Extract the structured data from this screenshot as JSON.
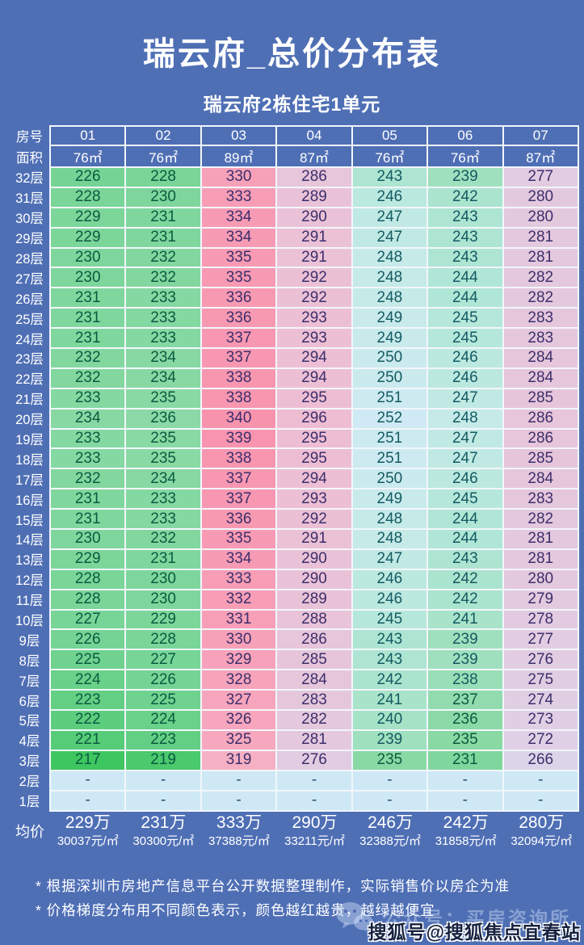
{
  "title": "瑞云府_总价分布表",
  "subtitle": "瑞云府2栋住宅1单元",
  "labels": {
    "corner_label": "房号",
    "area_label": "面积",
    "avg_label": "均价",
    "empty_cell": "-"
  },
  "colors": {
    "page_bg": "#4f6fb5",
    "grid_line": "#f2f6fb",
    "dash_row_bg": "#cee9f5",
    "dash_text": "#2b4a70",
    "text_green": "#0b5b40",
    "text_teal": "#155a62",
    "text_indigo": "#3c2f6b",
    "header_text": "#ffffff",
    "sohu_text": "#16213f"
  },
  "heatmap_stops": [
    {
      "value": 217,
      "color": "#3ec661"
    },
    {
      "value": 226,
      "color": "#75d495"
    },
    {
      "value": 236,
      "color": "#8bd9a6"
    },
    {
      "value": 240,
      "color": "#a5e2c6"
    },
    {
      "value": 244,
      "color": "#b0e6d6"
    },
    {
      "value": 248,
      "color": "#c5eae8"
    },
    {
      "value": 252,
      "color": "#cfeaf4"
    },
    {
      "value": 266,
      "color": "#dcd5ea"
    },
    {
      "value": 280,
      "color": "#e3c9de"
    },
    {
      "value": 296,
      "color": "#eebdd2"
    },
    {
      "value": 319,
      "color": "#f6b0c4"
    },
    {
      "value": 340,
      "color": "#f893ae"
    }
  ],
  "chart_data": {
    "type": "heatmap",
    "title": "瑞云府_总价分布表",
    "subtitle": "瑞云府2栋住宅1单元",
    "columns": [
      "01",
      "02",
      "03",
      "04",
      "05",
      "06",
      "07"
    ],
    "column_areas": [
      "76㎡",
      "76㎡",
      "89㎡",
      "87㎡",
      "76㎡",
      "76㎡",
      "87㎡"
    ],
    "rows": [
      "32层",
      "31层",
      "30层",
      "29层",
      "28层",
      "27层",
      "26层",
      "25层",
      "24层",
      "23层",
      "22层",
      "21层",
      "20层",
      "19层",
      "18层",
      "17层",
      "16层",
      "15层",
      "14层",
      "13层",
      "12层",
      "11层",
      "10层",
      "9层",
      "8层",
      "7层",
      "6层",
      "5层",
      "4层",
      "3层",
      "2层",
      "1层"
    ],
    "values": [
      [
        226,
        228,
        330,
        286,
        243,
        239,
        277
      ],
      [
        228,
        230,
        333,
        289,
        246,
        242,
        280
      ],
      [
        229,
        231,
        334,
        290,
        247,
        243,
        280
      ],
      [
        229,
        231,
        334,
        291,
        247,
        243,
        281
      ],
      [
        230,
        232,
        335,
        291,
        248,
        243,
        281
      ],
      [
        230,
        232,
        335,
        292,
        248,
        244,
        282
      ],
      [
        231,
        233,
        336,
        292,
        248,
        244,
        282
      ],
      [
        231,
        233,
        336,
        293,
        249,
        245,
        283
      ],
      [
        231,
        233,
        337,
        293,
        249,
        245,
        283
      ],
      [
        232,
        234,
        337,
        294,
        250,
        246,
        284
      ],
      [
        232,
        234,
        338,
        294,
        250,
        246,
        284
      ],
      [
        233,
        235,
        338,
        295,
        251,
        247,
        285
      ],
      [
        234,
        236,
        340,
        296,
        252,
        248,
        286
      ],
      [
        233,
        235,
        339,
        295,
        251,
        247,
        286
      ],
      [
        233,
        235,
        338,
        295,
        251,
        247,
        285
      ],
      [
        232,
        234,
        337,
        294,
        250,
        246,
        284
      ],
      [
        231,
        233,
        337,
        293,
        249,
        245,
        283
      ],
      [
        231,
        233,
        336,
        292,
        248,
        244,
        282
      ],
      [
        230,
        232,
        335,
        291,
        248,
        244,
        281
      ],
      [
        229,
        231,
        334,
        290,
        247,
        243,
        281
      ],
      [
        228,
        230,
        333,
        290,
        246,
        242,
        280
      ],
      [
        228,
        230,
        332,
        289,
        246,
        242,
        279
      ],
      [
        227,
        229,
        331,
        288,
        245,
        241,
        278
      ],
      [
        226,
        228,
        330,
        286,
        243,
        239,
        277
      ],
      [
        225,
        227,
        329,
        285,
        243,
        239,
        276
      ],
      [
        224,
        226,
        328,
        284,
        242,
        238,
        275
      ],
      [
        223,
        225,
        327,
        283,
        241,
        237,
        274
      ],
      [
        222,
        224,
        326,
        282,
        240,
        236,
        273
      ],
      [
        221,
        223,
        325,
        281,
        239,
        235,
        272
      ],
      [
        217,
        219,
        319,
        276,
        235,
        231,
        266
      ],
      [
        "-",
        "-",
        "-",
        "-",
        "-",
        "-",
        "-"
      ],
      [
        "-",
        "-",
        "-",
        "-",
        "-",
        "-",
        "-"
      ]
    ],
    "averages_total": [
      "229万",
      "231万",
      "333万",
      "290万",
      "246万",
      "242万",
      "280万"
    ],
    "averages_per_sqm": [
      "30037元/㎡",
      "30300元/㎡",
      "37388元/㎡",
      "33211元/㎡",
      "32388元/㎡",
      "31858元/㎡",
      "32094元/㎡"
    ]
  },
  "footnotes": [
    "* 根据深圳市房地产信息平台公开数据整理制作，实际销售价以房企为准",
    "* 价格梯度分布用不同颜色表示，颜色越红越贵，越绿越便宜"
  ],
  "watermark": {
    "wechat_label": "公众号：买房咨询所",
    "sohu_label": "搜狐号@搜狐焦点宜春站"
  }
}
